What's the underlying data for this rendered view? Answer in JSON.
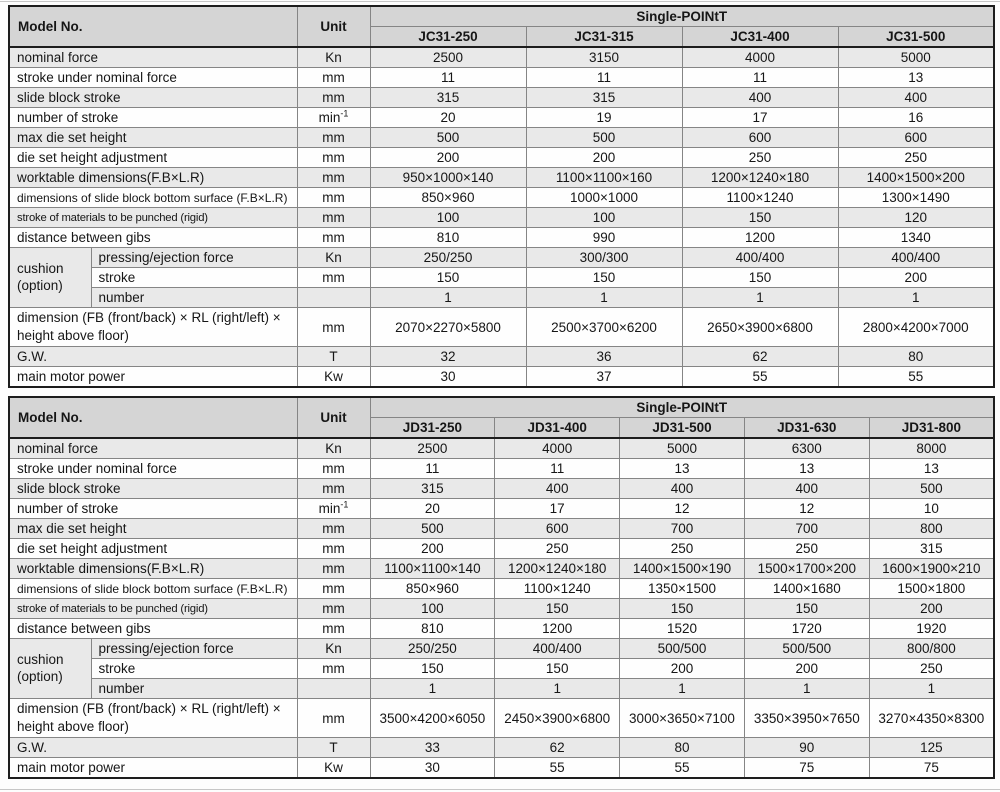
{
  "colors": {
    "header_bg": "#d5d5d5",
    "row_alt_bg": "#e9e9e9",
    "row_bg": "#fefefe",
    "border_outer": "#1d1d1d",
    "grid_line": "#858585",
    "page_rule": "#c6c6c6",
    "text": "#161616"
  },
  "tables": [
    {
      "corner_label": "Model No.",
      "unit_label": "Unit",
      "group_header": "Single-POINtT",
      "models": [
        "JC31-250",
        "JC31-315",
        "JC31-400",
        "JC31-500"
      ],
      "rows": [
        {
          "label": "nominal force",
          "unit": "Kn",
          "values": [
            "2500",
            "3150",
            "4000",
            "5000"
          ]
        },
        {
          "label": "stroke under nominal force",
          "unit": "mm",
          "values": [
            "11",
            "11",
            "11",
            "13"
          ]
        },
        {
          "label": "slide block stroke",
          "unit": "mm",
          "values": [
            "315",
            "315",
            "400",
            "400"
          ]
        },
        {
          "label": "number of stroke",
          "unit": "min⁻¹",
          "values": [
            "20",
            "19",
            "17",
            "16"
          ]
        },
        {
          "label": "max die set height",
          "unit": "mm",
          "values": [
            "500",
            "500",
            "600",
            "600"
          ]
        },
        {
          "label": "die set height adjustment",
          "unit": "mm",
          "values": [
            "200",
            "200",
            "250",
            "250"
          ]
        },
        {
          "label": "worktable dimensions(F.B×L.R)",
          "unit": "mm",
          "values": [
            "950×1000×140",
            "1100×1100×160",
            "1200×1240×180",
            "1400×1500×200"
          ]
        },
        {
          "label": "dimensions of slide block bottom surface (F.B×L.R)",
          "unit": "mm",
          "values": [
            "850×960",
            "1000×1000",
            "1100×1240",
            "1300×1490"
          ]
        },
        {
          "label": "stroke of materials to be punched (rigid)",
          "unit": "mm",
          "values": [
            "100",
            "100",
            "150",
            "120"
          ]
        },
        {
          "label": "distance between gibs",
          "unit": "mm",
          "values": [
            "810",
            "990",
            "1200",
            "1340"
          ]
        }
      ],
      "cushion_group": {
        "label": "cushion (option)",
        "rows": [
          {
            "label": "pressing/ejection force",
            "unit": "Kn",
            "values": [
              "250/250",
              "300/300",
              "400/400",
              "400/400"
            ]
          },
          {
            "label": "stroke",
            "unit": "mm",
            "values": [
              "150",
              "150",
              "150",
              "200"
            ]
          },
          {
            "label": "number",
            "unit": "",
            "values": [
              "1",
              "1",
              "1",
              "1"
            ]
          }
        ]
      },
      "footer_rows": [
        {
          "label": "dimension (FB (front/back) × RL (right/left) × height above floor)",
          "unit": "mm",
          "values": [
            "2070×2270×5800",
            "2500×3700×6200",
            "2650×3900×6800",
            "2800×4200×7000"
          ]
        },
        {
          "label": "G.W.",
          "unit": "T",
          "values": [
            "32",
            "36",
            "62",
            "80"
          ]
        },
        {
          "label": "main motor power",
          "unit": "Kw",
          "values": [
            "30",
            "37",
            "55",
            "55"
          ]
        }
      ]
    },
    {
      "corner_label": "Model No.",
      "unit_label": "Unit",
      "group_header": "Single-POINtT",
      "models": [
        "JD31-250",
        "JD31-400",
        "JD31-500",
        "JD31-630",
        "JD31-800"
      ],
      "rows": [
        {
          "label": "nominal force",
          "unit": "Kn",
          "values": [
            "2500",
            "4000",
            "5000",
            "6300",
            "8000"
          ]
        },
        {
          "label": "stroke under nominal force",
          "unit": "mm",
          "values": [
            "11",
            "11",
            "13",
            "13",
            "13"
          ]
        },
        {
          "label": "slide block stroke",
          "unit": "mm",
          "values": [
            "315",
            "400",
            "400",
            "400",
            "500"
          ]
        },
        {
          "label": "number of stroke",
          "unit": "min⁻¹",
          "values": [
            "20",
            "17",
            "12",
            "12",
            "10"
          ]
        },
        {
          "label": "max die set height",
          "unit": "mm",
          "values": [
            "500",
            "600",
            "700",
            "700",
            "800"
          ]
        },
        {
          "label": "die set height adjustment",
          "unit": "mm",
          "values": [
            "200",
            "250",
            "250",
            "250",
            "315"
          ]
        },
        {
          "label": "worktable dimensions(F.B×L.R)",
          "unit": "mm",
          "values": [
            "1100×1100×140",
            "1200×1240×180",
            "1400×1500×190",
            "1500×1700×200",
            "1600×1900×210"
          ]
        },
        {
          "label": "dimensions of slide block bottom surface (F.B×L.R)",
          "unit": "mm",
          "values": [
            "850×960",
            "1100×1240",
            "1350×1500",
            "1400×1680",
            "1500×1800"
          ]
        },
        {
          "label": "stroke of materials to be punched (rigid)",
          "unit": "mm",
          "values": [
            "100",
            "150",
            "150",
            "150",
            "200"
          ]
        },
        {
          "label": "distance between gibs",
          "unit": "mm",
          "values": [
            "810",
            "1200",
            "1520",
            "1720",
            "1920"
          ]
        }
      ],
      "cushion_group": {
        "label": "cushion (option)",
        "rows": [
          {
            "label": "pressing/ejection force",
            "unit": "Kn",
            "values": [
              "250/250",
              "400/400",
              "500/500",
              "500/500",
              "800/800"
            ]
          },
          {
            "label": "stroke",
            "unit": "mm",
            "values": [
              "150",
              "150",
              "200",
              "200",
              "250"
            ]
          },
          {
            "label": "number",
            "unit": "",
            "values": [
              "1",
              "1",
              "1",
              "1",
              "1"
            ]
          }
        ]
      },
      "footer_rows": [
        {
          "label": "dimension (FB (front/back) × RL (right/left) × height above floor)",
          "unit": "mm",
          "values": [
            "3500×4200×6050",
            "2450×3900×6800",
            "3000×3650×7100",
            "3350×3950×7650",
            "3270×4350×8300"
          ]
        },
        {
          "label": "G.W.",
          "unit": "T",
          "values": [
            "33",
            "62",
            "80",
            "90",
            "125"
          ]
        },
        {
          "label": "main motor power",
          "unit": "Kw",
          "values": [
            "30",
            "55",
            "55",
            "75",
            "75"
          ]
        }
      ]
    }
  ]
}
